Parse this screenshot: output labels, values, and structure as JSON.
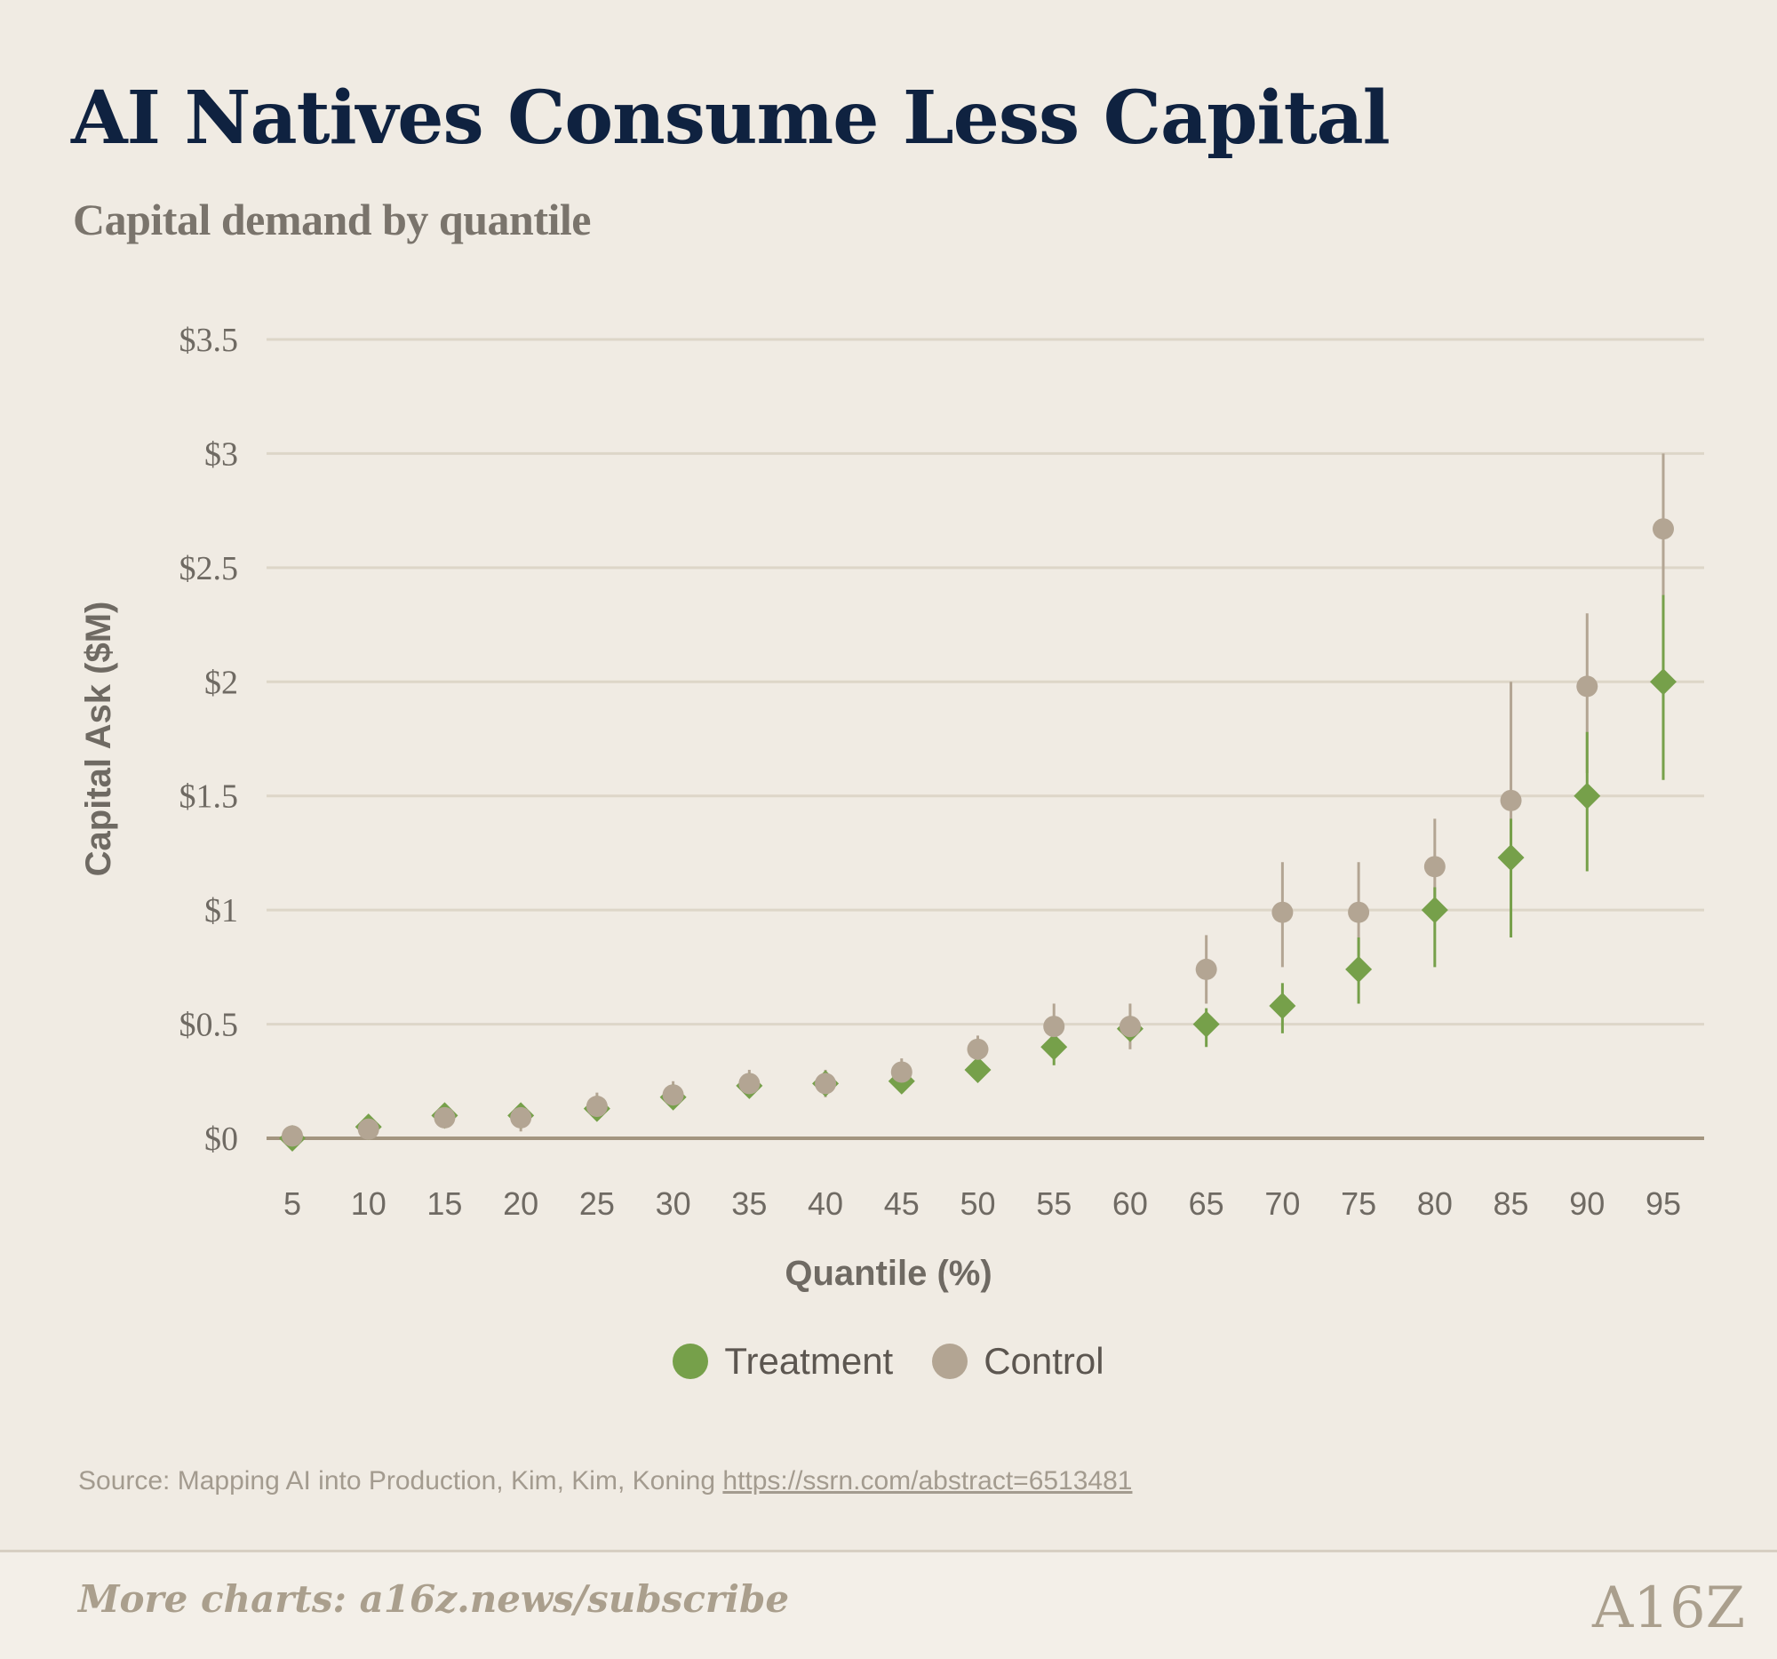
{
  "header": {
    "title": "AI Natives Consume Less Capital",
    "subtitle": "Capital demand by quantile"
  },
  "colors": {
    "treatment": "#76a04a",
    "control": "#b3a593",
    "grid": "#ddd6c8",
    "baseline": "#a39580",
    "title": "#0f2240"
  },
  "legend": {
    "treatment_label": "Treatment",
    "control_label": "Control"
  },
  "source": {
    "text": "Source: Mapping AI into Production, Kim, Kim, Koning",
    "url": "https://ssrn.com/abstract=6513481"
  },
  "footer": {
    "link_text": "More charts: a16z.news/subscribe",
    "logo_text": "A16Z"
  },
  "chart_data": {
    "type": "scatter",
    "xlabel": "Quantile (%)",
    "ylabel": "Capital Ask ($M)",
    "ylim": [
      0,
      3.5
    ],
    "yticks": [
      0,
      0.5,
      1,
      1.5,
      2,
      2.5,
      3,
      3.5
    ],
    "ytick_labels": [
      "$0",
      "$0.5",
      "$1",
      "$1.5",
      "$2",
      "$2.5",
      "$3",
      "$3.5"
    ],
    "categories": [
      "5",
      "10",
      "15",
      "20",
      "25",
      "30",
      "35",
      "40",
      "45",
      "50",
      "55",
      "60",
      "65",
      "70",
      "75",
      "80",
      "85",
      "90",
      "95"
    ],
    "grid": true,
    "legend_position": "bottom-center",
    "series": [
      {
        "name": "Treatment",
        "marker": "diamond",
        "values": [
          0,
          0.05,
          0.1,
          0.1,
          0.13,
          0.18,
          0.23,
          0.24,
          0.25,
          0.3,
          0.4,
          0.48,
          0.5,
          0.58,
          0.74,
          1.0,
          1.23,
          1.5,
          2.0
        ],
        "error_low": [
          null,
          null,
          null,
          null,
          null,
          null,
          null,
          null,
          null,
          null,
          0.32,
          null,
          0.4,
          0.46,
          0.59,
          0.75,
          0.88,
          1.17,
          1.57
        ],
        "error_high": [
          null,
          null,
          null,
          null,
          null,
          null,
          null,
          null,
          null,
          null,
          0.45,
          null,
          0.57,
          0.68,
          0.88,
          1.1,
          1.4,
          1.78,
          2.38
        ]
      },
      {
        "name": "Control",
        "marker": "circle",
        "values": [
          0.01,
          0.04,
          0.09,
          0.09,
          0.14,
          0.19,
          0.24,
          0.24,
          0.29,
          0.39,
          0.49,
          0.49,
          0.74,
          0.99,
          0.99,
          1.19,
          1.48,
          1.98,
          2.67
        ],
        "error_low": [
          null,
          0.0,
          null,
          0.03,
          0.08,
          0.13,
          0.18,
          0.18,
          0.24,
          0.33,
          0.42,
          0.39,
          0.59,
          0.75,
          0.8,
          1.0,
          1.2,
          1.6,
          2.3
        ],
        "error_high": [
          null,
          0.1,
          null,
          0.15,
          0.2,
          0.25,
          0.3,
          0.3,
          0.35,
          0.45,
          0.59,
          0.59,
          0.89,
          1.21,
          1.21,
          1.4,
          2.0,
          2.3,
          3.0
        ]
      }
    ]
  }
}
